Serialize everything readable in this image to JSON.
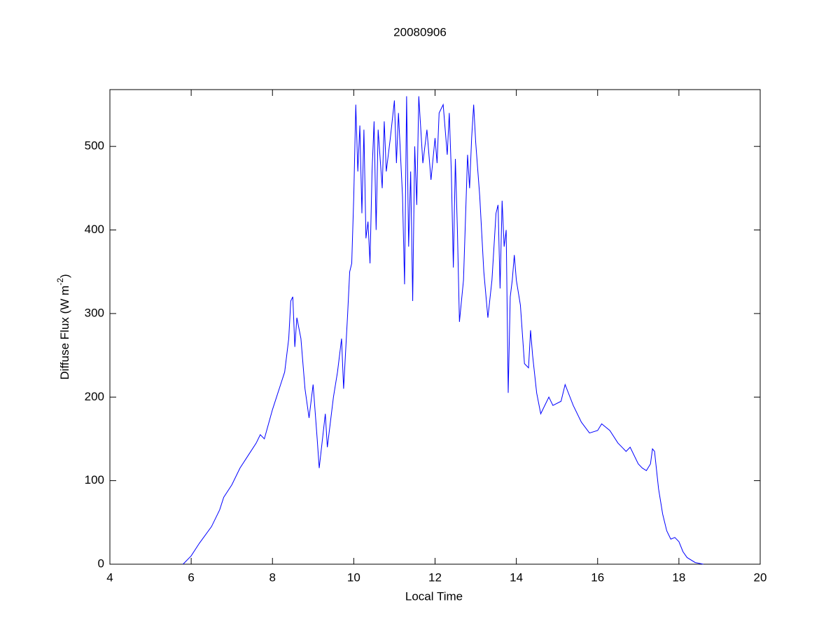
{
  "chart_data": {
    "type": "line",
    "title": "20080906",
    "xlabel": "Local Time",
    "ylabel": {
      "text": "Diffuse Flux (W m",
      "superscript": "-2",
      "suffix": ")"
    },
    "x": [
      5.8,
      6.0,
      6.2,
      6.5,
      6.7,
      6.8,
      7.0,
      7.2,
      7.4,
      7.6,
      7.7,
      7.8,
      8.0,
      8.2,
      8.3,
      8.4,
      8.45,
      8.5,
      8.55,
      8.6,
      8.7,
      8.8,
      8.9,
      9.0,
      9.1,
      9.15,
      9.3,
      9.35,
      9.5,
      9.6,
      9.7,
      9.75,
      9.85,
      9.9,
      9.95,
      10.0,
      10.05,
      10.1,
      10.15,
      10.2,
      10.25,
      10.3,
      10.35,
      10.4,
      10.45,
      10.5,
      10.55,
      10.6,
      10.7,
      10.75,
      10.8,
      10.9,
      11.0,
      11.05,
      11.1,
      11.2,
      11.25,
      11.3,
      11.35,
      11.4,
      11.45,
      11.5,
      11.55,
      11.6,
      11.7,
      11.8,
      11.9,
      12.0,
      12.05,
      12.1,
      12.2,
      12.3,
      12.35,
      12.4,
      12.45,
      12.5,
      12.55,
      12.6,
      12.7,
      12.8,
      12.85,
      12.9,
      12.95,
      13.0,
      13.1,
      13.2,
      13.3,
      13.4,
      13.5,
      13.55,
      13.6,
      13.65,
      13.7,
      13.75,
      13.8,
      13.85,
      13.9,
      13.95,
      14.0,
      14.1,
      14.2,
      14.3,
      14.35,
      14.4,
      14.5,
      14.6,
      14.8,
      14.9,
      15.1,
      15.2,
      15.4,
      15.6,
      15.8,
      16.0,
      16.1,
      16.3,
      16.5,
      16.7,
      16.8,
      17.0,
      17.1,
      17.2,
      17.3,
      17.35,
      17.4,
      17.5,
      17.6,
      17.7,
      17.8,
      17.9,
      18.0,
      18.1,
      18.2,
      18.4,
      18.6
    ],
    "series": [
      {
        "color": "#0000ff",
        "values": [
          0,
          10,
          25,
          45,
          65,
          80,
          95,
          115,
          130,
          145,
          155,
          150,
          185,
          215,
          230,
          270,
          315,
          320,
          260,
          295,
          270,
          210,
          175,
          215,
          150,
          115,
          180,
          140,
          200,
          230,
          270,
          210,
          300,
          350,
          360,
          440,
          550,
          470,
          525,
          420,
          520,
          390,
          410,
          360,
          470,
          530,
          400,
          520,
          450,
          530,
          470,
          510,
          555,
          480,
          540,
          440,
          335,
          560,
          380,
          470,
          315,
          500,
          430,
          560,
          480,
          520,
          460,
          510,
          480,
          540,
          550,
          490,
          540,
          470,
          355,
          485,
          400,
          290,
          340,
          490,
          450,
          510,
          550,
          505,
          440,
          350,
          295,
          340,
          420,
          430,
          330,
          435,
          380,
          400,
          205,
          320,
          340,
          370,
          340,
          310,
          240,
          235,
          280,
          250,
          205,
          180,
          200,
          190,
          195,
          215,
          190,
          170,
          157,
          160,
          168,
          160,
          145,
          135,
          140,
          120,
          115,
          112,
          120,
          138,
          135,
          90,
          60,
          40,
          30,
          32,
          27,
          15,
          8,
          2,
          0
        ]
      }
    ],
    "xlim": [
      4,
      20
    ],
    "xticks": [
      4,
      6,
      8,
      10,
      12,
      14,
      16,
      18,
      20
    ],
    "ylim": [
      0,
      568
    ],
    "yticks": [
      0,
      100,
      200,
      300,
      400,
      500
    ],
    "grid": false
  }
}
